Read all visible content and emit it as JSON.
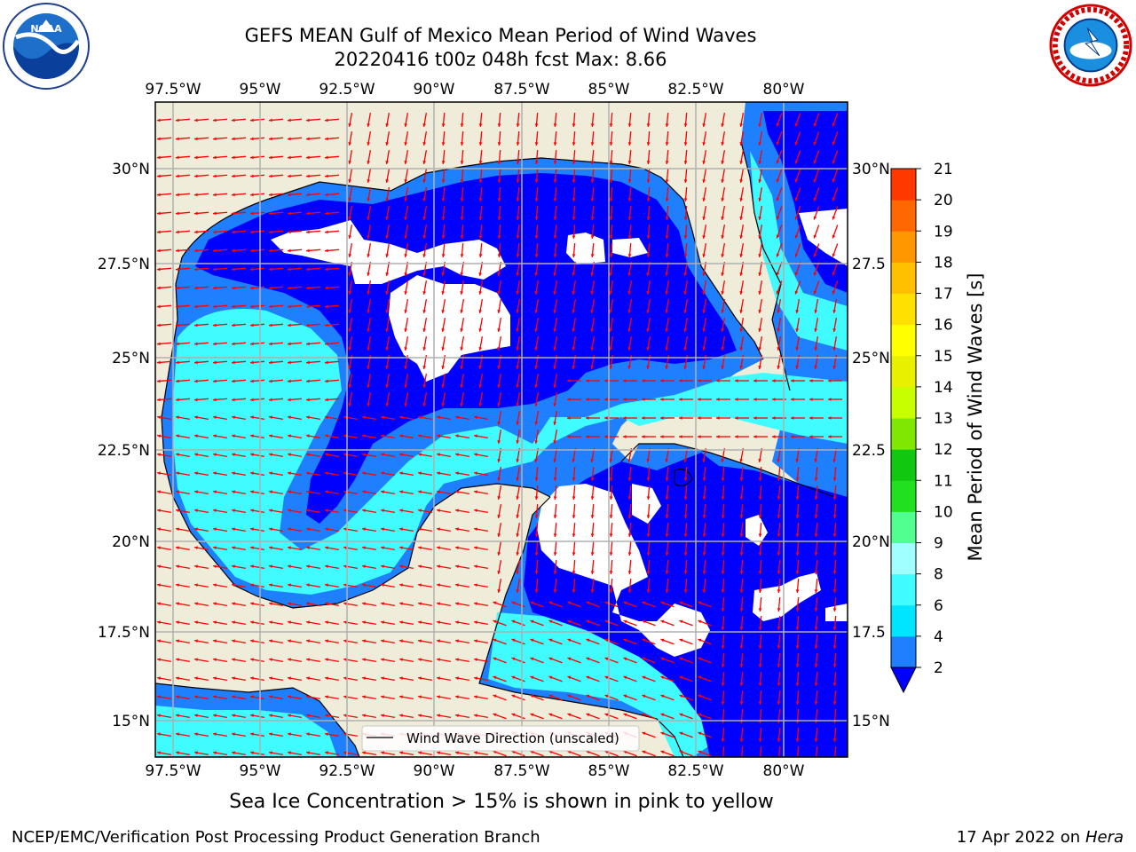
{
  "title": {
    "line1": "GEFS MEAN Gulf of Mexico Mean Period of Wind Waves",
    "line2": "20220416 t00z 048h fcst   Max: 8.66"
  },
  "logos": {
    "left": "noaa-logo",
    "right": "national-weather-service-logo"
  },
  "map": {
    "lon_labels": [
      "97.5°W",
      "95°W",
      "92.5°W",
      "90°W",
      "87.5°W",
      "85°W",
      "82.5°W",
      "80°W"
    ],
    "lat_labels_left": [
      "30°N",
      "27.5°N",
      "25°N",
      "22.5°N",
      "20°N",
      "17.5°N",
      "15°N"
    ],
    "lat_labels_right": [
      "30°N",
      "27.5",
      "25°N",
      "22.5",
      "20°N",
      "17.5",
      "15°N"
    ],
    "legend_label": "Wind Wave Direction (unscaled)",
    "arrow_color": "#ff0000",
    "land_color": "#efecda"
  },
  "colorbar": {
    "label": "Mean Period of Wind Waves [s]",
    "ticks": [
      "2",
      "4",
      "6",
      "8",
      "9",
      "10",
      "11",
      "12",
      "13",
      "14",
      "15",
      "16",
      "17",
      "18",
      "19",
      "20",
      "21"
    ],
    "colors": [
      "#1e7fff",
      "#00e5ff",
      "#40fbff",
      "#a0ffff",
      "#50ff90",
      "#20e020",
      "#10c810",
      "#80e800",
      "#c8ff00",
      "#e8f000",
      "#ffff00",
      "#ffe000",
      "#ffc000",
      "#ff9800",
      "#ff6800",
      "#ff3800",
      "#ff0000"
    ],
    "under_color": "#0000ff"
  },
  "note": "Sea Ice Concentration > 15% is shown in pink to yellow",
  "footer": {
    "left": "NCEP/EMC/Verification Post Processing Product Generation Branch",
    "right_date": "17 Apr 2022 on ",
    "right_host": "Hera"
  }
}
